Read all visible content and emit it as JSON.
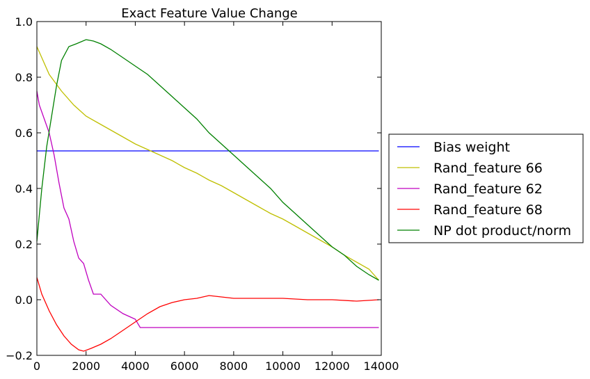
{
  "chart_data": {
    "type": "line",
    "title": "Exact Feature Value Change",
    "xlabel": "",
    "ylabel": "",
    "xlim": [
      0,
      14000
    ],
    "ylim": [
      -0.2,
      1.0
    ],
    "xticks": [
      0,
      2000,
      4000,
      6000,
      8000,
      10000,
      12000,
      14000
    ],
    "yticks": [
      -0.2,
      0.0,
      0.2,
      0.4,
      0.6,
      0.8,
      1.0
    ],
    "xtick_labels": [
      "0",
      "2000",
      "4000",
      "6000",
      "8000",
      "10000",
      "12000",
      "14000"
    ],
    "ytick_labels": [
      "−0.2",
      "0.0",
      "0.2",
      "0.4",
      "0.6",
      "0.8",
      "1.0"
    ],
    "grid": false,
    "legend_position": "outside-right",
    "series": [
      {
        "name": "Bias weight",
        "color": "#0000ff",
        "x": [
          0,
          13900
        ],
        "y": [
          0.535,
          0.535
        ]
      },
      {
        "name": "Rand_feature 66",
        "color": "#bfbf00",
        "x": [
          0,
          200,
          500,
          1000,
          1500,
          2000,
          2500,
          3000,
          3500,
          4000,
          4500,
          5000,
          5500,
          6000,
          6500,
          7000,
          7500,
          8000,
          8500,
          9000,
          9500,
          10000,
          10500,
          11000,
          11500,
          12000,
          12500,
          13000,
          13500,
          13900
        ],
        "y": [
          0.91,
          0.87,
          0.81,
          0.75,
          0.7,
          0.66,
          0.635,
          0.61,
          0.585,
          0.56,
          0.54,
          0.52,
          0.5,
          0.475,
          0.455,
          0.43,
          0.41,
          0.385,
          0.36,
          0.335,
          0.31,
          0.29,
          0.265,
          0.24,
          0.215,
          0.19,
          0.16,
          0.135,
          0.11,
          0.07
        ]
      },
      {
        "name": "Rand_feature 62",
        "color": "#bf00bf",
        "x": [
          0,
          100,
          300,
          500,
          700,
          900,
          1100,
          1300,
          1500,
          1700,
          1900,
          2100,
          2300,
          2600,
          3000,
          3500,
          4000,
          4200,
          5000,
          8000,
          11000,
          13900
        ],
        "y": [
          0.75,
          0.7,
          0.65,
          0.6,
          0.52,
          0.42,
          0.33,
          0.29,
          0.21,
          0.15,
          0.13,
          0.07,
          0.02,
          0.02,
          -0.02,
          -0.05,
          -0.07,
          -0.1,
          -0.1,
          -0.1,
          -0.1,
          -0.1
        ]
      },
      {
        "name": "Rand_feature 68",
        "color": "#ff0000",
        "x": [
          0,
          200,
          500,
          800,
          1100,
          1400,
          1700,
          1900,
          2200,
          2600,
          3000,
          3500,
          4000,
          4500,
          5000,
          5500,
          6000,
          6500,
          7000,
          7500,
          8000,
          9000,
          10000,
          11000,
          12000,
          13000,
          13900
        ],
        "y": [
          0.08,
          0.02,
          -0.04,
          -0.09,
          -0.13,
          -0.16,
          -0.18,
          -0.185,
          -0.175,
          -0.16,
          -0.14,
          -0.11,
          -0.08,
          -0.05,
          -0.025,
          -0.01,
          0.0,
          0.005,
          0.015,
          0.01,
          0.005,
          0.005,
          0.005,
          0.0,
          0.0,
          -0.005,
          0.0
        ]
      },
      {
        "name": "NP dot product/norm",
        "color": "#008000",
        "x": [
          0,
          200,
          400,
          600,
          800,
          1000,
          1300,
          1600,
          2000,
          2300,
          2600,
          3000,
          3500,
          4000,
          4500,
          5000,
          5500,
          6000,
          6500,
          7000,
          7500,
          8000,
          8500,
          9000,
          9500,
          10000,
          10500,
          11000,
          11500,
          12000,
          12500,
          13000,
          13500,
          13900
        ],
        "y": [
          0.21,
          0.4,
          0.55,
          0.66,
          0.77,
          0.86,
          0.91,
          0.92,
          0.935,
          0.93,
          0.92,
          0.9,
          0.87,
          0.84,
          0.81,
          0.77,
          0.73,
          0.69,
          0.65,
          0.6,
          0.56,
          0.52,
          0.48,
          0.44,
          0.4,
          0.35,
          0.31,
          0.27,
          0.23,
          0.19,
          0.16,
          0.12,
          0.09,
          0.07
        ]
      }
    ]
  }
}
